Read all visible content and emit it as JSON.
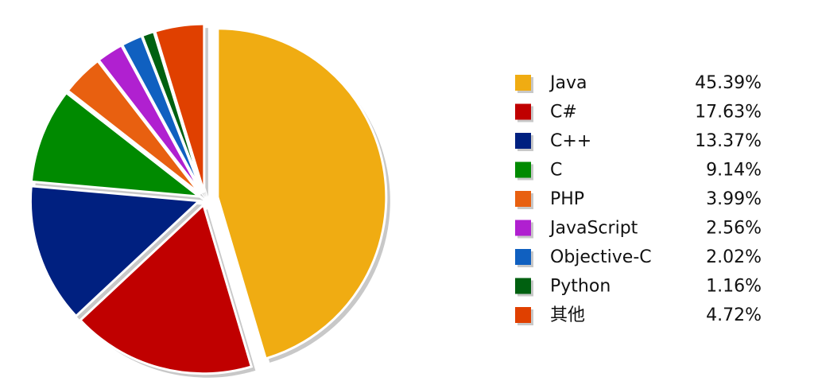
{
  "chart_data": {
    "type": "pie",
    "categories": [
      "Java",
      "C#",
      "C++",
      "C",
      "PHP",
      "JavaScript",
      "Objective-C",
      "Python",
      "其他"
    ],
    "values": [
      45.39,
      17.63,
      13.37,
      9.14,
      3.99,
      2.56,
      2.02,
      1.16,
      4.72
    ],
    "value_labels": [
      "45.39%",
      "17.63%",
      "13.37%",
      "9.14%",
      "3.99%",
      "2.56%",
      "2.02%",
      "1.16%",
      "4.72%"
    ],
    "colors": [
      "#f0ac12",
      "#c00000",
      "#002080",
      "#008a00",
      "#e86010",
      "#b020d0",
      "#1060c0",
      "#006010",
      "#e04000"
    ],
    "legend": "right"
  }
}
